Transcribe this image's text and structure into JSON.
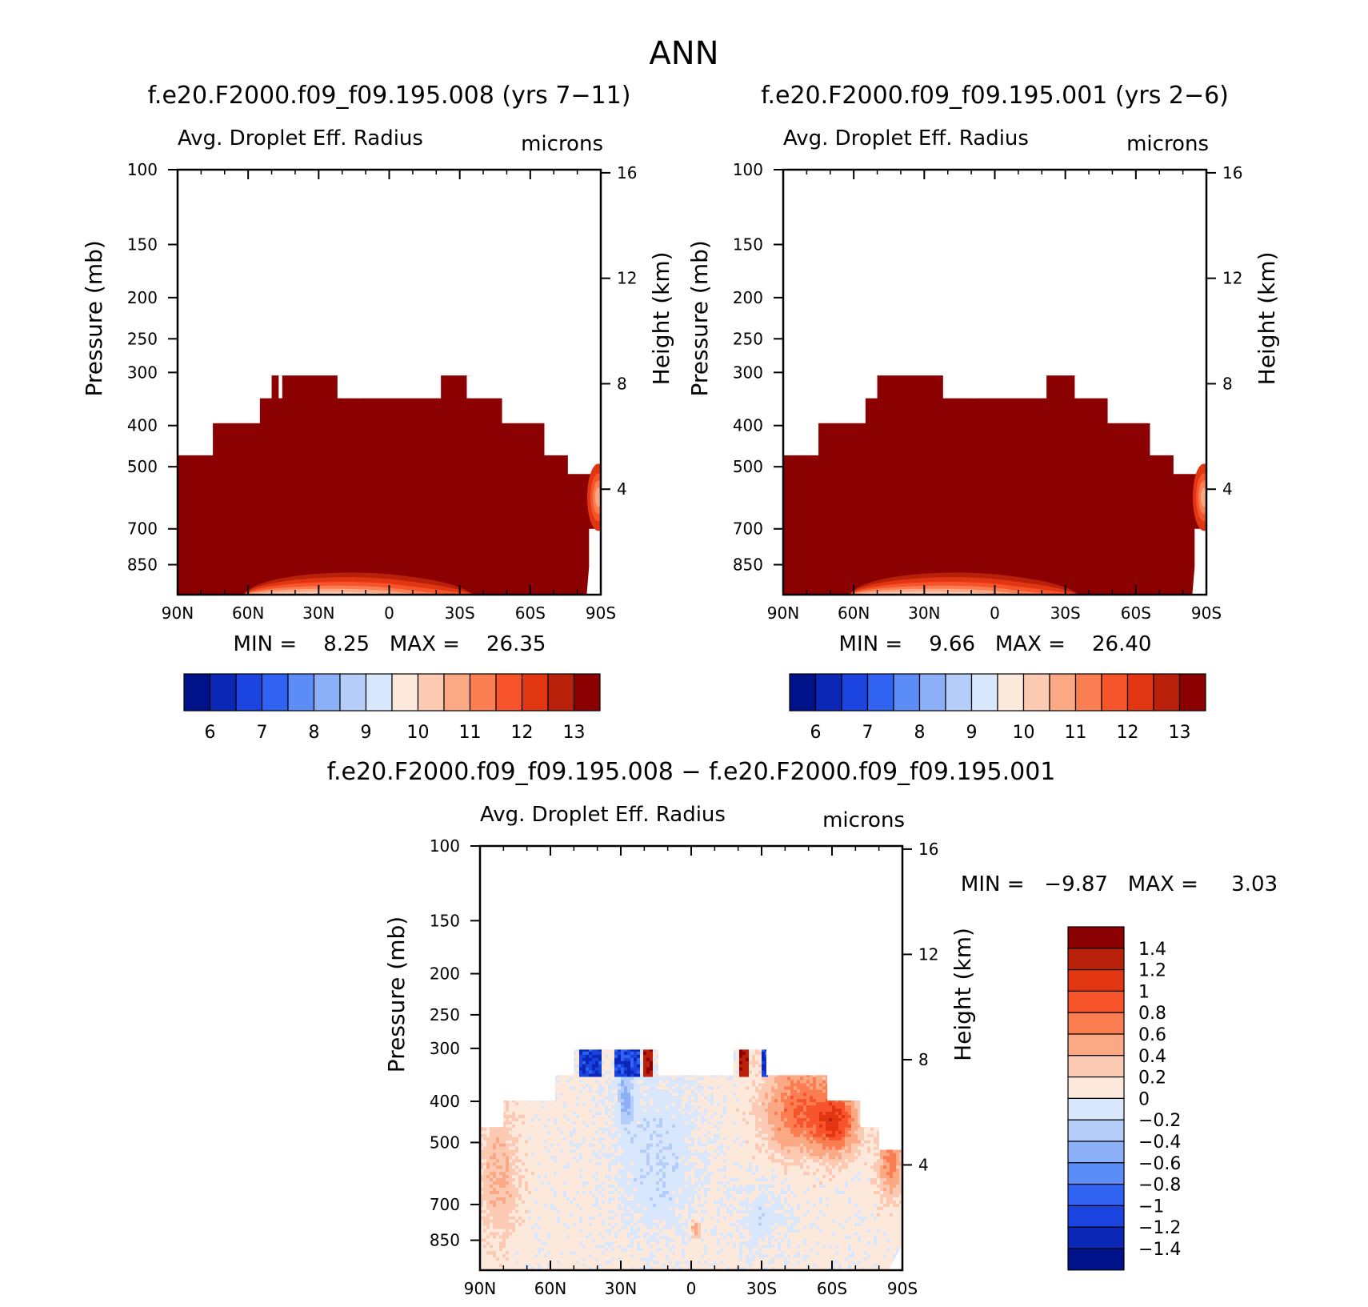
{
  "figure_title": "ANN",
  "colors": {
    "plus": [
      "#fde9dc",
      "#fcc9b2",
      "#fba884",
      "#fa7e52",
      "#f7542c",
      "#e23512",
      "#b8200a",
      "#8b0000"
    ],
    "minus": [
      "#d8e7fb",
      "#b4cef9",
      "#8cb0f8",
      "#5c8cf6",
      "#3163f3",
      "#1a43df",
      "#0b27b6",
      "#00128a"
    ]
  },
  "chart_data": [
    {
      "type": "heatmap",
      "panel": "top-left",
      "title": "f.e20.F2000.f09_f09.195.008 (yrs 7−11)",
      "variable": "Avg. Droplet Eff. Radius",
      "units": "microns",
      "ylabel": "Pressure (mb)",
      "ylabel_right": "Height (km)",
      "x_ticks": [
        "90N",
        "60N",
        "30N",
        "0",
        "30S",
        "60S",
        "90S"
      ],
      "y_ticks": [
        "100",
        "150",
        "200",
        "250",
        "300",
        "400",
        "500",
        "700",
        "850"
      ],
      "y_ticks_right": [
        "16",
        "12",
        "8",
        "4"
      ],
      "stats_label": "MIN =    8.25   MAX =    26.35",
      "min": 8.25,
      "max": 26.35,
      "colorbar_ticks": [
        "6",
        "7",
        "8",
        "9",
        "10",
        "11",
        "12",
        "13"
      ],
      "ylim_mb": [
        100,
        1000
      ]
    },
    {
      "type": "heatmap",
      "panel": "top-right",
      "title": "f.e20.F2000.f09_f09.195.001 (yrs 2−6)",
      "variable": "Avg. Droplet Eff. Radius",
      "units": "microns",
      "ylabel": "Pressure (mb)",
      "ylabel_right": "Height (km)",
      "x_ticks": [
        "90N",
        "60N",
        "30N",
        "0",
        "30S",
        "60S",
        "90S"
      ],
      "y_ticks": [
        "100",
        "150",
        "200",
        "250",
        "300",
        "400",
        "500",
        "700",
        "850"
      ],
      "y_ticks_right": [
        "16",
        "12",
        "8",
        "4"
      ],
      "stats_label": "MIN =    9.66   MAX =    26.40",
      "min": 9.66,
      "max": 26.4,
      "colorbar_ticks": [
        "6",
        "7",
        "8",
        "9",
        "10",
        "11",
        "12",
        "13"
      ],
      "ylim_mb": [
        100,
        1000
      ]
    },
    {
      "type": "heatmap",
      "panel": "bottom",
      "title": "f.e20.F2000.f09_f09.195.008 − f.e20.F2000.f09_f09.195.001",
      "variable": "Avg. Droplet Eff. Radius",
      "units": "microns",
      "ylabel": "Pressure (mb)",
      "ylabel_right": "Height (km)",
      "x_ticks": [
        "90N",
        "60N",
        "30N",
        "0",
        "30S",
        "60S",
        "90S"
      ],
      "y_ticks": [
        "100",
        "150",
        "200",
        "250",
        "300",
        "400",
        "500",
        "700",
        "850"
      ],
      "y_ticks_right": [
        "16",
        "12",
        "8",
        "4"
      ],
      "stats_label": "MIN =   −9.87   MAX =     3.03",
      "min": -9.87,
      "max": 3.03,
      "colorbar_ticks": [
        "1.4",
        "1.2",
        "1",
        "0.8",
        "0.6",
        "0.4",
        "0.2",
        "0",
        "−0.2",
        "−0.4",
        "−0.6",
        "−0.8",
        "−1",
        "−1.2",
        "−1.4"
      ],
      "ylim_mb": [
        100,
        1000
      ]
    }
  ]
}
